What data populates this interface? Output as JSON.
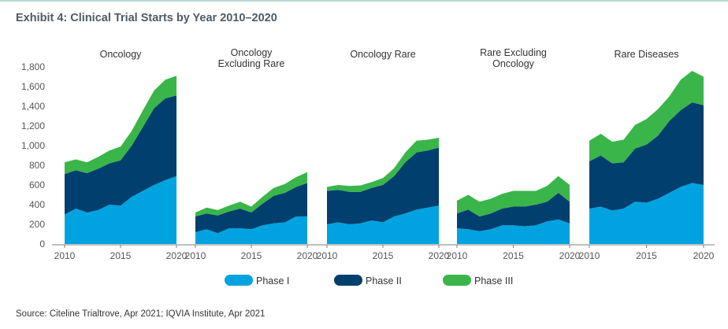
{
  "title": "Exhibit 4: Clinical Trial Starts by Year 2010–2020",
  "source": "Source: Citeline Trialtrove, Apr 2021; IQVIA Institute, Apr 2021",
  "colors": {
    "phase1": "#00a3e0",
    "phase2": "#003f6e",
    "phase3": "#3ab54a",
    "axis_text": "#555555",
    "axis_line": "#7f7f7f"
  },
  "chart_data": {
    "type": "area",
    "stacked": true,
    "x": [
      2010,
      2011,
      2012,
      2013,
      2014,
      2015,
      2016,
      2017,
      2018,
      2019,
      2020
    ],
    "ylim": [
      0,
      1800
    ],
    "yticks": [
      0,
      200,
      400,
      600,
      800,
      1000,
      1200,
      1400,
      1600,
      1800
    ],
    "ytick_labels": [
      "0",
      "200",
      "400",
      "600",
      "800",
      "1,000",
      "1,200",
      "1,400",
      "1,600",
      "1,800"
    ],
    "xticks": [
      2010,
      2015,
      2020
    ],
    "grid": false,
    "legend": {
      "position": "bottom",
      "entries": [
        "Phase I",
        "Phase II",
        "Phase III"
      ]
    },
    "panels": [
      {
        "title": [
          "Oncology"
        ],
        "series": [
          {
            "name": "Phase I",
            "values": [
              300,
              360,
              320,
              345,
              400,
              390,
              480,
              540,
              600,
              650,
              690
            ]
          },
          {
            "name": "Phase II",
            "values": [
              410,
              390,
              400,
              420,
              420,
              460,
              520,
              650,
              780,
              830,
              820
            ]
          },
          {
            "name": "Phase III",
            "values": [
              120,
              110,
              110,
              120,
              130,
              140,
              150,
              170,
              180,
              190,
              200
            ]
          }
        ]
      },
      {
        "title": [
          "Oncology",
          "Excluding Rare"
        ],
        "series": [
          {
            "name": "Phase I",
            "values": [
              120,
              150,
              110,
              160,
              160,
              150,
              190,
              210,
              220,
              280,
              280
            ]
          },
          {
            "name": "Phase II",
            "values": [
              160,
              160,
              180,
              170,
              200,
              170,
              220,
              280,
              300,
              300,
              340
            ]
          },
          {
            "name": "Phase III",
            "values": [
              40,
              60,
              55,
              60,
              70,
              60,
              70,
              80,
              90,
              100,
              110
            ]
          }
        ]
      },
      {
        "title": [
          "Oncology Rare"
        ],
        "series": [
          {
            "name": "Phase I",
            "values": [
              200,
              220,
              200,
              210,
              240,
              220,
              280,
              310,
              350,
              370,
              390
            ]
          },
          {
            "name": "Phase II",
            "values": [
              340,
              330,
              330,
              320,
              330,
              380,
              410,
              520,
              580,
              580,
              590
            ]
          },
          {
            "name": "Phase III",
            "values": [
              40,
              50,
              60,
              65,
              60,
              70,
              80,
              100,
              120,
              110,
              100
            ]
          }
        ]
      },
      {
        "title": [
          "Rare Excluding",
          "Oncology"
        ],
        "series": [
          {
            "name": "Phase I",
            "values": [
              160,
              150,
              130,
              150,
              190,
              190,
              180,
              190,
              230,
              250,
              210
            ]
          },
          {
            "name": "Phase II",
            "values": [
              150,
              200,
              150,
              160,
              170,
              190,
              200,
              210,
              200,
              270,
              220
            ]
          },
          {
            "name": "Phase III",
            "values": [
              130,
              150,
              150,
              150,
              150,
              160,
              160,
              140,
              160,
              170,
              170
            ]
          }
        ]
      },
      {
        "title": [
          "Rare Diseases"
        ],
        "series": [
          {
            "name": "Phase I",
            "values": [
              360,
              380,
              340,
              360,
              430,
              420,
              460,
              520,
              580,
              620,
              600
            ]
          },
          {
            "name": "Phase II",
            "values": [
              480,
              520,
              480,
              470,
              540,
              590,
              640,
              730,
              780,
              820,
              810
            ]
          },
          {
            "name": "Phase III",
            "values": [
              210,
              220,
              220,
              230,
              240,
              260,
              270,
              250,
              310,
              320,
              290
            ]
          }
        ]
      }
    ]
  }
}
